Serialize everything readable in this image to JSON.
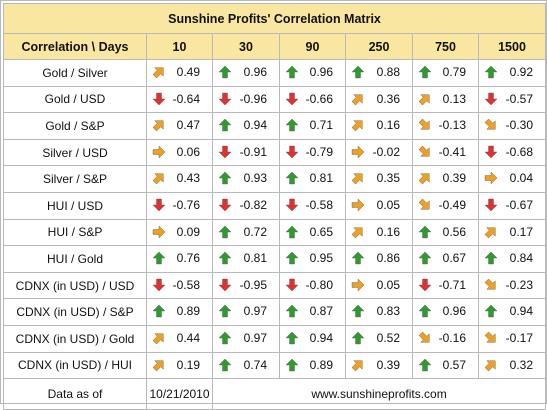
{
  "title": "Sunshine Profits' Correlation Matrix",
  "header": {
    "corner": "Correlation \\ Days",
    "days": [
      "10",
      "30",
      "90",
      "250",
      "750",
      "1500"
    ]
  },
  "colors": {
    "header_bg": "#f9e7a1",
    "border": "#b9b9b9",
    "up_arrow": "#2e9b2e",
    "down_arrow": "#e03030",
    "neutral_arrow": "#f0a020"
  },
  "rows": [
    {
      "label": "Gold / Silver",
      "cells": [
        {
          "v": "0.49",
          "icon": "up-right"
        },
        {
          "v": "0.96",
          "icon": "up"
        },
        {
          "v": "0.96",
          "icon": "up"
        },
        {
          "v": "0.88",
          "icon": "up"
        },
        {
          "v": "0.79",
          "icon": "up"
        },
        {
          "v": "0.92",
          "icon": "up"
        }
      ]
    },
    {
      "label": "Gold / USD",
      "cells": [
        {
          "v": "-0.64",
          "icon": "down"
        },
        {
          "v": "-0.96",
          "icon": "down"
        },
        {
          "v": "-0.66",
          "icon": "down"
        },
        {
          "v": "0.36",
          "icon": "up-right"
        },
        {
          "v": "0.13",
          "icon": "up-right"
        },
        {
          "v": "-0.57",
          "icon": "down"
        }
      ]
    },
    {
      "label": "Gold / S&P",
      "cells": [
        {
          "v": "0.47",
          "icon": "up-right"
        },
        {
          "v": "0.94",
          "icon": "up"
        },
        {
          "v": "0.71",
          "icon": "up"
        },
        {
          "v": "0.16",
          "icon": "up-right"
        },
        {
          "v": "-0.13",
          "icon": "down-right"
        },
        {
          "v": "-0.30",
          "icon": "down-right"
        }
      ]
    },
    {
      "label": "Silver / USD",
      "cells": [
        {
          "v": "0.06",
          "icon": "right"
        },
        {
          "v": "-0.91",
          "icon": "down"
        },
        {
          "v": "-0.79",
          "icon": "down"
        },
        {
          "v": "-0.02",
          "icon": "right"
        },
        {
          "v": "-0.41",
          "icon": "down-right"
        },
        {
          "v": "-0.68",
          "icon": "down"
        }
      ]
    },
    {
      "label": "Silver / S&P",
      "cells": [
        {
          "v": "0.43",
          "icon": "up-right"
        },
        {
          "v": "0.93",
          "icon": "up"
        },
        {
          "v": "0.81",
          "icon": "up"
        },
        {
          "v": "0.35",
          "icon": "up-right"
        },
        {
          "v": "0.39",
          "icon": "up-right"
        },
        {
          "v": "0.04",
          "icon": "right"
        }
      ]
    },
    {
      "label": "HUI / USD",
      "cells": [
        {
          "v": "-0.76",
          "icon": "down"
        },
        {
          "v": "-0.82",
          "icon": "down"
        },
        {
          "v": "-0.58",
          "icon": "down"
        },
        {
          "v": "0.05",
          "icon": "right"
        },
        {
          "v": "-0.49",
          "icon": "down-right"
        },
        {
          "v": "-0.67",
          "icon": "down"
        }
      ]
    },
    {
      "label": "HUI / S&P",
      "cells": [
        {
          "v": "0.09",
          "icon": "right"
        },
        {
          "v": "0.72",
          "icon": "up"
        },
        {
          "v": "0.65",
          "icon": "up"
        },
        {
          "v": "0.16",
          "icon": "up-right"
        },
        {
          "v": "0.56",
          "icon": "up"
        },
        {
          "v": "0.17",
          "icon": "up-right"
        }
      ]
    },
    {
      "label": "HUI / Gold",
      "cells": [
        {
          "v": "0.76",
          "icon": "up"
        },
        {
          "v": "0.81",
          "icon": "up"
        },
        {
          "v": "0.95",
          "icon": "up"
        },
        {
          "v": "0.86",
          "icon": "up"
        },
        {
          "v": "0.67",
          "icon": "up"
        },
        {
          "v": "0.84",
          "icon": "up"
        }
      ]
    },
    {
      "label": "CDNX (in USD) / USD",
      "cells": [
        {
          "v": "-0.58",
          "icon": "down"
        },
        {
          "v": "-0.95",
          "icon": "down"
        },
        {
          "v": "-0.80",
          "icon": "down"
        },
        {
          "v": "0.05",
          "icon": "right"
        },
        {
          "v": "-0.71",
          "icon": "down"
        },
        {
          "v": "-0.23",
          "icon": "down-right"
        }
      ]
    },
    {
      "label": "CDNX (in USD) / S&P",
      "cells": [
        {
          "v": "0.89",
          "icon": "up"
        },
        {
          "v": "0.97",
          "icon": "up"
        },
        {
          "v": "0.87",
          "icon": "up"
        },
        {
          "v": "0.83",
          "icon": "up"
        },
        {
          "v": "0.96",
          "icon": "up"
        },
        {
          "v": "0.94",
          "icon": "up"
        }
      ]
    },
    {
      "label": "CDNX (in USD) / Gold",
      "cells": [
        {
          "v": "0.44",
          "icon": "up-right"
        },
        {
          "v": "0.97",
          "icon": "up"
        },
        {
          "v": "0.94",
          "icon": "up"
        },
        {
          "v": "0.52",
          "icon": "up"
        },
        {
          "v": "-0.16",
          "icon": "down-right"
        },
        {
          "v": "-0.17",
          "icon": "down-right"
        }
      ]
    },
    {
      "label": "CDNX (in USD) / HUI",
      "cells": [
        {
          "v": "0.19",
          "icon": "up-right"
        },
        {
          "v": "0.74",
          "icon": "up"
        },
        {
          "v": "0.89",
          "icon": "up"
        },
        {
          "v": "0.39",
          "icon": "up-right"
        },
        {
          "v": "0.57",
          "icon": "up"
        },
        {
          "v": "0.32",
          "icon": "up-right"
        }
      ]
    }
  ],
  "footer": {
    "label": "Data as of",
    "date": "10/21/2010",
    "site": "www.sunshineprofits.com"
  }
}
